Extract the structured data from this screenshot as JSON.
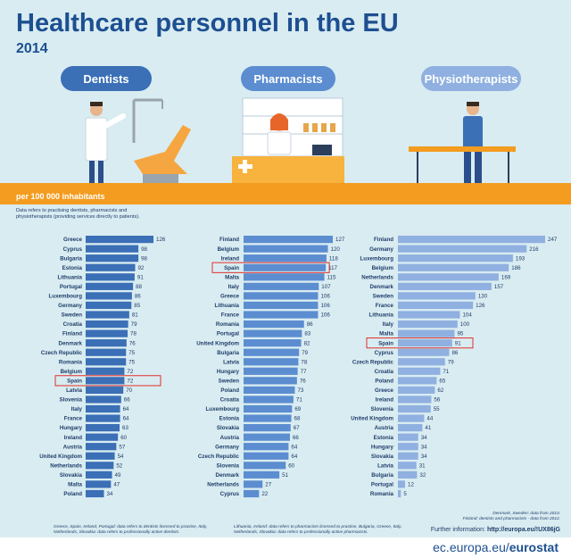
{
  "header": {
    "title": "Healthcare personnel in the EU",
    "year": "2014"
  },
  "categories": {
    "dentists": "Dentists",
    "pharmacists": "Pharmacists",
    "physiotherapists": "Physiotherapists"
  },
  "unit_label": "per 100 000 inhabitants",
  "note_top": "Data refers to practising dentists, pharmacists and physiotherapists (providing services directly to patients).",
  "footnotes": {
    "dentists": "Greece, Spain, Ireland, Portugal: data refers to dentists licensed to practise, Italy, Netherlands, Slovakia: data refers to professionally active dentists.",
    "pharmacists": "Lithuania, Ireland: data refers to pharmacists licensed to practise, Bulgaria, Greece, Italy, Netherlands, Slovakia: data refers to professionally active pharmacists.",
    "physio_1": "Denmark, Sweden: data from 2013.",
    "physio_2": "Finland: dentists and pharmacists - data from 2012."
  },
  "further_label": "Further information:",
  "further_link": "http://europa.eu/!UX86jG",
  "source_domain": "ec.europa.eu/",
  "source_brand": "eurostat",
  "colors": {
    "dentists": "#3b6fb6",
    "pharmacists": "#5b8dd0",
    "physiotherapists": "#8fb0e0",
    "highlight": "#e0302c",
    "accent": "#f39c1f"
  },
  "chart_data": [
    {
      "type": "bar",
      "name": "Dentists",
      "highlight": "Spain",
      "categories": [
        "Greece",
        "Cyprus",
        "Bulgaria",
        "Estonia",
        "Lithuania",
        "Portugal",
        "Luxembourg",
        "Germany",
        "Sweden",
        "Croatia",
        "Finland",
        "Denmark",
        "Czech Republic",
        "Romania",
        "Belgium",
        "Spain",
        "Latvia",
        "Slovenia",
        "Italy",
        "France",
        "Hungary",
        "Ireland",
        "Austria",
        "United Kingdom",
        "Netherlands",
        "Slovakia",
        "Malta",
        "Poland"
      ],
      "values": [
        126,
        98,
        98,
        92,
        91,
        88,
        86,
        85,
        81,
        79,
        78,
        76,
        75,
        75,
        72,
        72,
        70,
        66,
        64,
        64,
        63,
        60,
        57,
        54,
        52,
        49,
        47,
        34
      ],
      "xlim": [
        0,
        250
      ]
    },
    {
      "type": "bar",
      "name": "Pharmacists",
      "highlight": "Spain",
      "categories": [
        "Finland",
        "Belgium",
        "Ireland",
        "Spain",
        "Malta",
        "Italy",
        "Greece",
        "Lithuania",
        "France",
        "Romania",
        "Portugal",
        "United Kingdom",
        "Bulgaria",
        "Latvia",
        "Hungary",
        "Sweden",
        "Poland",
        "Croatia",
        "Luxembourg",
        "Estonia",
        "Slovakia",
        "Austria",
        "Germany",
        "Czech Republic",
        "Slovenia",
        "Denmark",
        "Netherlands",
        "Cyprus"
      ],
      "values": [
        127,
        120,
        118,
        117,
        115,
        107,
        106,
        106,
        106,
        86,
        83,
        82,
        79,
        78,
        77,
        76,
        73,
        71,
        69,
        68,
        67,
        66,
        64,
        64,
        60,
        51,
        27,
        22
      ],
      "xlim": [
        0,
        250
      ]
    },
    {
      "type": "bar",
      "name": "Physiotherapists",
      "highlight": "Spain",
      "categories": [
        "Finland",
        "Germany",
        "Luxembourg",
        "Belgium",
        "Netherlands",
        "Denmark",
        "Sweden",
        "France",
        "Lithuania",
        "Italy",
        "Malta",
        "Spain",
        "Cyprus",
        "Czech Republic",
        "Croatia",
        "Poland",
        "Greece",
        "Ireland",
        "Slovenia",
        "United Kingdom",
        "Austria",
        "Estonia",
        "Hungary",
        "Slovakia",
        "Latvia",
        "Bulgaria",
        "Portugal",
        "Romania"
      ],
      "values": [
        247,
        216,
        193,
        186,
        169,
        157,
        130,
        126,
        104,
        100,
        95,
        91,
        86,
        79,
        71,
        65,
        62,
        56,
        55,
        44,
        41,
        34,
        34,
        34,
        31,
        32,
        12,
        5
      ],
      "xlim": [
        0,
        250
      ]
    }
  ]
}
